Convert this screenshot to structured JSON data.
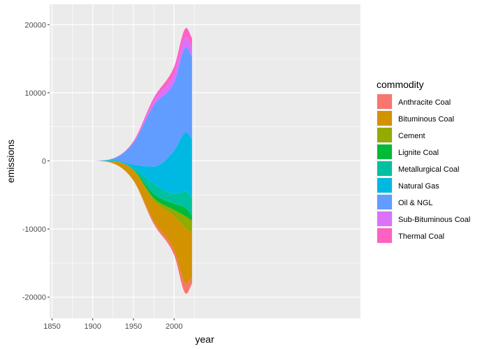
{
  "chart_data": {
    "type": "area",
    "subtype": "streamgraph",
    "xlabel": "year",
    "ylabel": "emissions",
    "xlim": [
      1847,
      2229
    ],
    "ylim": [
      -23100,
      23000
    ],
    "xticks": [
      1850,
      1900,
      1950,
      2000
    ],
    "yticks": [
      -20000,
      -10000,
      0,
      10000,
      20000
    ],
    "ytick_labels": [
      "-20000",
      "-10000",
      "0",
      "10000",
      "20000"
    ],
    "legend_title": "commodity",
    "legend_position": "right",
    "grid": true,
    "x": [
      1854,
      1900,
      1925,
      1950,
      1975,
      2000,
      2015,
      2022
    ],
    "series": [
      {
        "name": "Anthracite Coal",
        "color": "#F8766D",
        "values": [
          0,
          0,
          5,
          30,
          400,
          700,
          1500,
          1000
        ]
      },
      {
        "name": "Bituminous Coal",
        "color": "#D39200",
        "values": [
          0,
          0,
          300,
          1500,
          3000,
          5000,
          8000,
          6500
        ]
      },
      {
        "name": "Cement",
        "color": "#93AA00",
        "values": [
          0,
          0,
          10,
          50,
          400,
          900,
          1800,
          1700
        ]
      },
      {
        "name": "Lignite Coal",
        "color": "#00BA38",
        "values": [
          0,
          0,
          10,
          60,
          600,
          900,
          1200,
          800
        ]
      },
      {
        "name": "Metallurgical Coal",
        "color": "#00C19F",
        "values": [
          0,
          0,
          40,
          200,
          1500,
          1500,
          2500,
          2500
        ]
      },
      {
        "name": "Natural Gas",
        "color": "#00B9E3",
        "values": [
          0,
          0,
          150,
          500,
          2500,
          6300,
          8700,
          8700
        ]
      },
      {
        "name": "Oil & NGL",
        "color": "#619CFF",
        "values": [
          0,
          0,
          200,
          3200,
          9000,
          10000,
          12500,
          12000
        ]
      },
      {
        "name": "Sub-Bituminous Coal",
        "color": "#DB72FB",
        "values": [
          0,
          0,
          10,
          100,
          600,
          1300,
          1500,
          1500
        ]
      },
      {
        "name": "Thermal Coal",
        "color": "#FF61C3",
        "values": [
          0,
          0,
          10,
          150,
          500,
          1000,
          1300,
          1300
        ]
      }
    ]
  }
}
